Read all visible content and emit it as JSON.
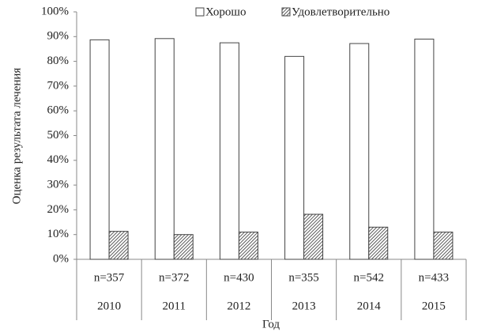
{
  "chart_data": {
    "type": "grouped-bar",
    "x_label": "Год",
    "y_label": "Оценка результата лечения",
    "categories": [
      "2010",
      "2011",
      "2012",
      "2013",
      "2014",
      "2015"
    ],
    "n_labels": [
      "n=357",
      "n=372",
      "n=430",
      "n=355",
      "n=542",
      "n=433"
    ],
    "series": [
      {
        "name": "Хорошо",
        "color": "#ffffff",
        "values": [
          88.7,
          89.2,
          87.5,
          82.0,
          87.2,
          89.0
        ]
      },
      {
        "name": "Удовлетворительно",
        "color": "#333333",
        "pattern": "hatch",
        "values": [
          11.3,
          10.0,
          11.0,
          18.2,
          13.0,
          11.0
        ]
      }
    ],
    "ylim": [
      0,
      100
    ],
    "yticks": [
      {
        "value": 0,
        "label": "0%"
      },
      {
        "value": 10,
        "label": "10%"
      },
      {
        "value": 20,
        "label": "20%"
      },
      {
        "value": 30,
        "label": "30%"
      },
      {
        "value": 40,
        "label": "40%"
      },
      {
        "value": 50,
        "label": "50%"
      },
      {
        "value": 60,
        "label": "60%"
      },
      {
        "value": 70,
        "label": "70%"
      },
      {
        "value": 80,
        "label": "80%"
      },
      {
        "value": 90,
        "label": "90%"
      },
      {
        "value": 100,
        "label": "100%"
      }
    ],
    "grid": false,
    "legend": "top"
  }
}
